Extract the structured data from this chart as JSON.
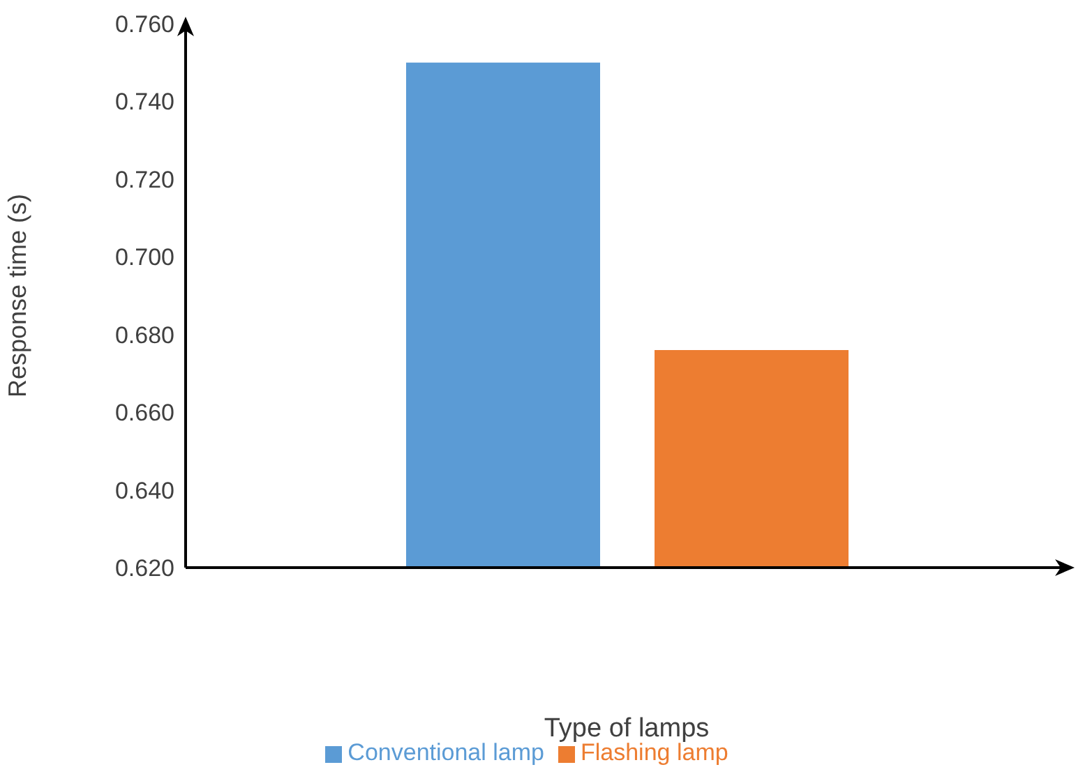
{
  "chart_data": {
    "type": "bar",
    "xlabel": "Type of lamps",
    "ylabel": "Response time (s)",
    "categories": [
      null
    ],
    "series": [
      {
        "name": "Conventional lamp",
        "color": "#5b9bd5",
        "values": [
          0.75
        ]
      },
      {
        "name": "Flashing lamp",
        "color": "#ed7d31",
        "values": [
          0.676
        ]
      }
    ],
    "ylim": [
      0.62,
      0.76
    ],
    "yticks": [
      {
        "value": 0.62,
        "label": "0.620"
      },
      {
        "value": 0.64,
        "label": "0.640"
      },
      {
        "value": 0.66,
        "label": "0.660"
      },
      {
        "value": 0.68,
        "label": "0.680"
      },
      {
        "value": 0.7,
        "label": "0.700"
      },
      {
        "value": 0.72,
        "label": "0.720"
      },
      {
        "value": 0.74,
        "label": "0.740"
      },
      {
        "value": 0.76,
        "label": "0.760"
      }
    ],
    "grid": false,
    "legend": "bottom"
  }
}
